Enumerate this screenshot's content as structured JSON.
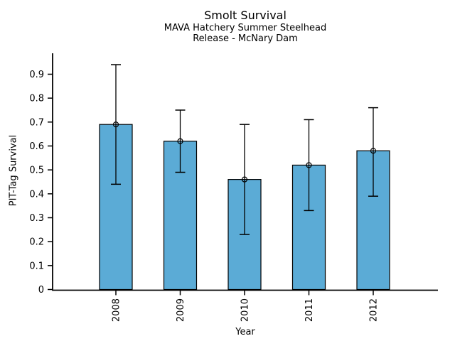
{
  "chart_data": {
    "type": "bar",
    "title": "Smolt Survival",
    "subtitle_lines": [
      "MAVA Hatchery Summer Steelhead",
      "Release - McNary Dam"
    ],
    "xlabel": "Year",
    "ylabel": "PIT-Tag Survival",
    "categories": [
      "2008",
      "2009",
      "2010",
      "2011",
      "2012"
    ],
    "values": [
      0.69,
      0.62,
      0.46,
      0.52,
      0.58
    ],
    "error_low": [
      0.44,
      0.49,
      0.23,
      0.33,
      0.39
    ],
    "error_high": [
      0.94,
      0.75,
      0.69,
      0.71,
      0.76
    ],
    "ytick_values": [
      0,
      0.1,
      0.2,
      0.3,
      0.4,
      0.5,
      0.6,
      0.7,
      0.8,
      0.9
    ],
    "ytick_labels": [
      "0",
      "0.1",
      "0.2",
      "0.3",
      "0.4",
      "0.5",
      "0.6",
      "0.7",
      "0.8",
      "0.9"
    ],
    "ylim": [
      0,
      0.99
    ],
    "grid": false,
    "xtick_label_rotation_deg": 90,
    "bar_color": "#5BABD6",
    "bar_edge_color": "#000000",
    "error_bar_color": "#000000",
    "marker": "open-circle",
    "text_color": "#000000",
    "background_color": "#ffffff"
  }
}
